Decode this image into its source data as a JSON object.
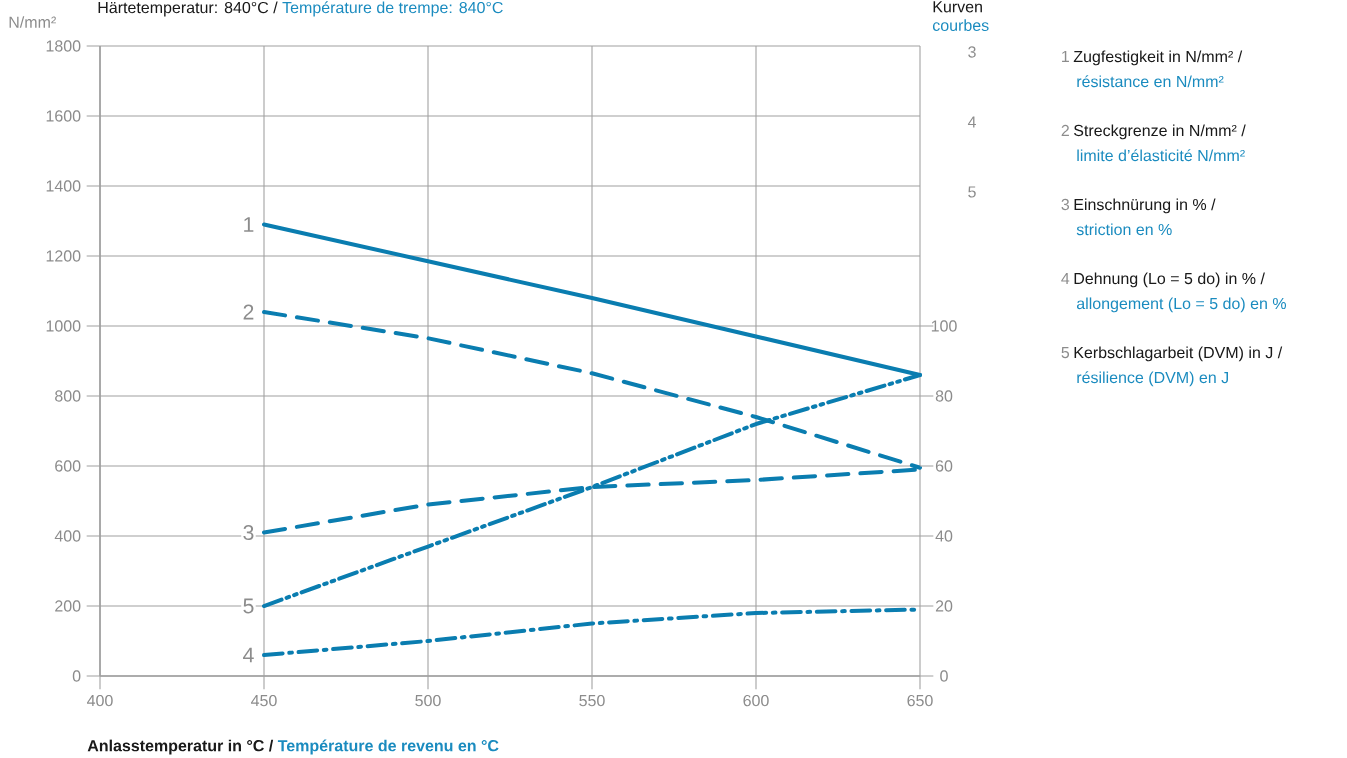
{
  "chart_data": {
    "type": "line",
    "title": "Härtetemperatur: 840°C /",
    "subtitle": "Température de trempe: 840°C",
    "xlabel": "Anlasstemperatur in °C /",
    "ylabel": "N/mm²",
    "y2label": "Kurven",
    "x": [
      450,
      500,
      550,
      600,
      650
    ],
    "series": [
      {
        "name": "1",
        "color": "#0a7db0",
        "line_style": "solid",
        "values": [
          1290,
          1185,
          1080,
          970,
          860
        ]
      },
      {
        "name": "2",
        "color": "#0a7db0",
        "line_style": "dashed",
        "values": [
          1040,
          965,
          865,
          740,
          595
        ]
      },
      {
        "name": "3",
        "color": "#0a7db0",
        "line_style": "dashed",
        "axis": "y2",
        "values": [
          41,
          49,
          54,
          56,
          59
        ]
      },
      {
        "name": "4",
        "color": "#0a7db0",
        "line_style": "dashdotted",
        "axis": "y2",
        "values": [
          6,
          10,
          15,
          18,
          19
        ]
      },
      {
        "name": "5",
        "color": "#0a7db0",
        "line_style": "dashdotdotted",
        "axis": "y2",
        "values": [
          20,
          37,
          54,
          72,
          86
        ]
      }
    ],
    "xlim": [
      400,
      650
    ],
    "xticks": [
      400,
      450,
      500,
      550,
      600,
      650
    ],
    "ylim": [
      0,
      1800
    ],
    "yticks": [
      0,
      200,
      400,
      600,
      800,
      1000,
      1200,
      1400,
      1600,
      1800
    ],
    "y2lim": [
      0,
      180
    ],
    "y2ticks": [
      0,
      20,
      40,
      60,
      80,
      100
    ],
    "grid": true,
    "annotations": [
      "Zugfestigkeit in N/mm² /",
      "résistance en N/mm²",
      "Streckgrenze in N/mm² /",
      "limite d’élasticité N/mm²",
      "Einschnürung in % /",
      "striction en %",
      "Dehnung (Lo = 5 do) in % /",
      "allongement (Lo = 5 do) en %",
      "Kerbschlagarbeit (DVM) in J /",
      "résilience (DVM) en J",
      "Température de revenu en °C",
      "courbes",
      "3",
      "4",
      "5"
    ]
  }
}
